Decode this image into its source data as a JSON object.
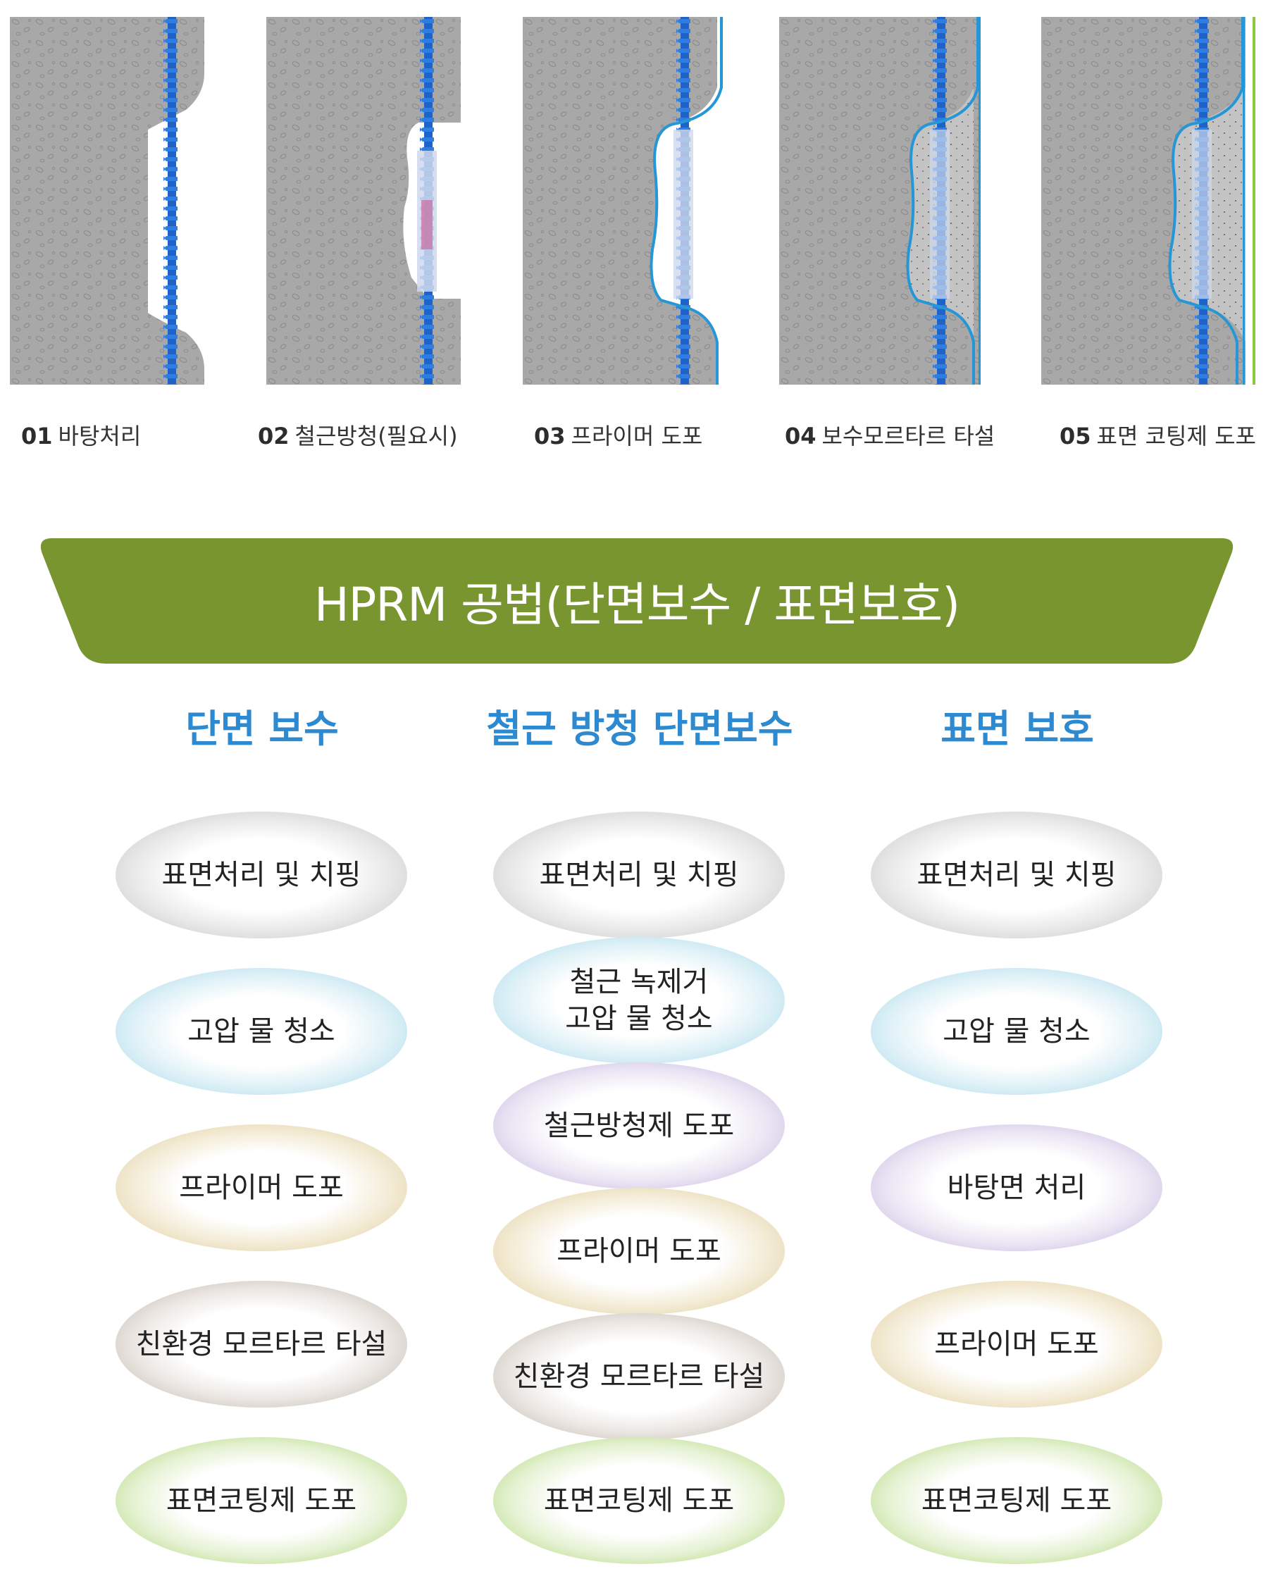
{
  "steps": [
    {
      "num": "01",
      "label": "바탕처리"
    },
    {
      "num": "02",
      "label": "철근방청(필요시)"
    },
    {
      "num": "03",
      "label": "프라이머 도포"
    },
    {
      "num": "04",
      "label": "보수모르타르 타설"
    },
    {
      "num": "05",
      "label": "표면 코팅제 도포"
    }
  ],
  "banner": {
    "title": "HPRM 공법(단면보수 / 표면보호)",
    "color": "#78952f"
  },
  "columns": [
    {
      "title": "단면 보수",
      "items": [
        "표면처리 및 치핑",
        "고압 물 청소",
        "프라이머 도포",
        "친환경 모르타르 타설",
        "표면코팅제 도포"
      ]
    },
    {
      "title": "철근 방청 단면보수",
      "items": [
        "표면처리 및 치핑",
        "철근 녹제거\n고압 물 청소",
        "철근방청제 도포",
        "프라이머 도포",
        "친환경 모르타르 타설",
        "표면코팅제 도포"
      ]
    },
    {
      "title": "표면 보호",
      "items": [
        "표면처리 및 치핑",
        "고압 물 청소",
        "바탕면 처리",
        "프라이머 도포",
        "표면코팅제 도포"
      ]
    }
  ],
  "colors": {
    "accent_blue": "#2e8ad0",
    "rebar_blue": "#1e63c8",
    "primer_line": "#2596d6",
    "concrete": "#a7a7a7",
    "coating_green": "#8dc63f"
  }
}
